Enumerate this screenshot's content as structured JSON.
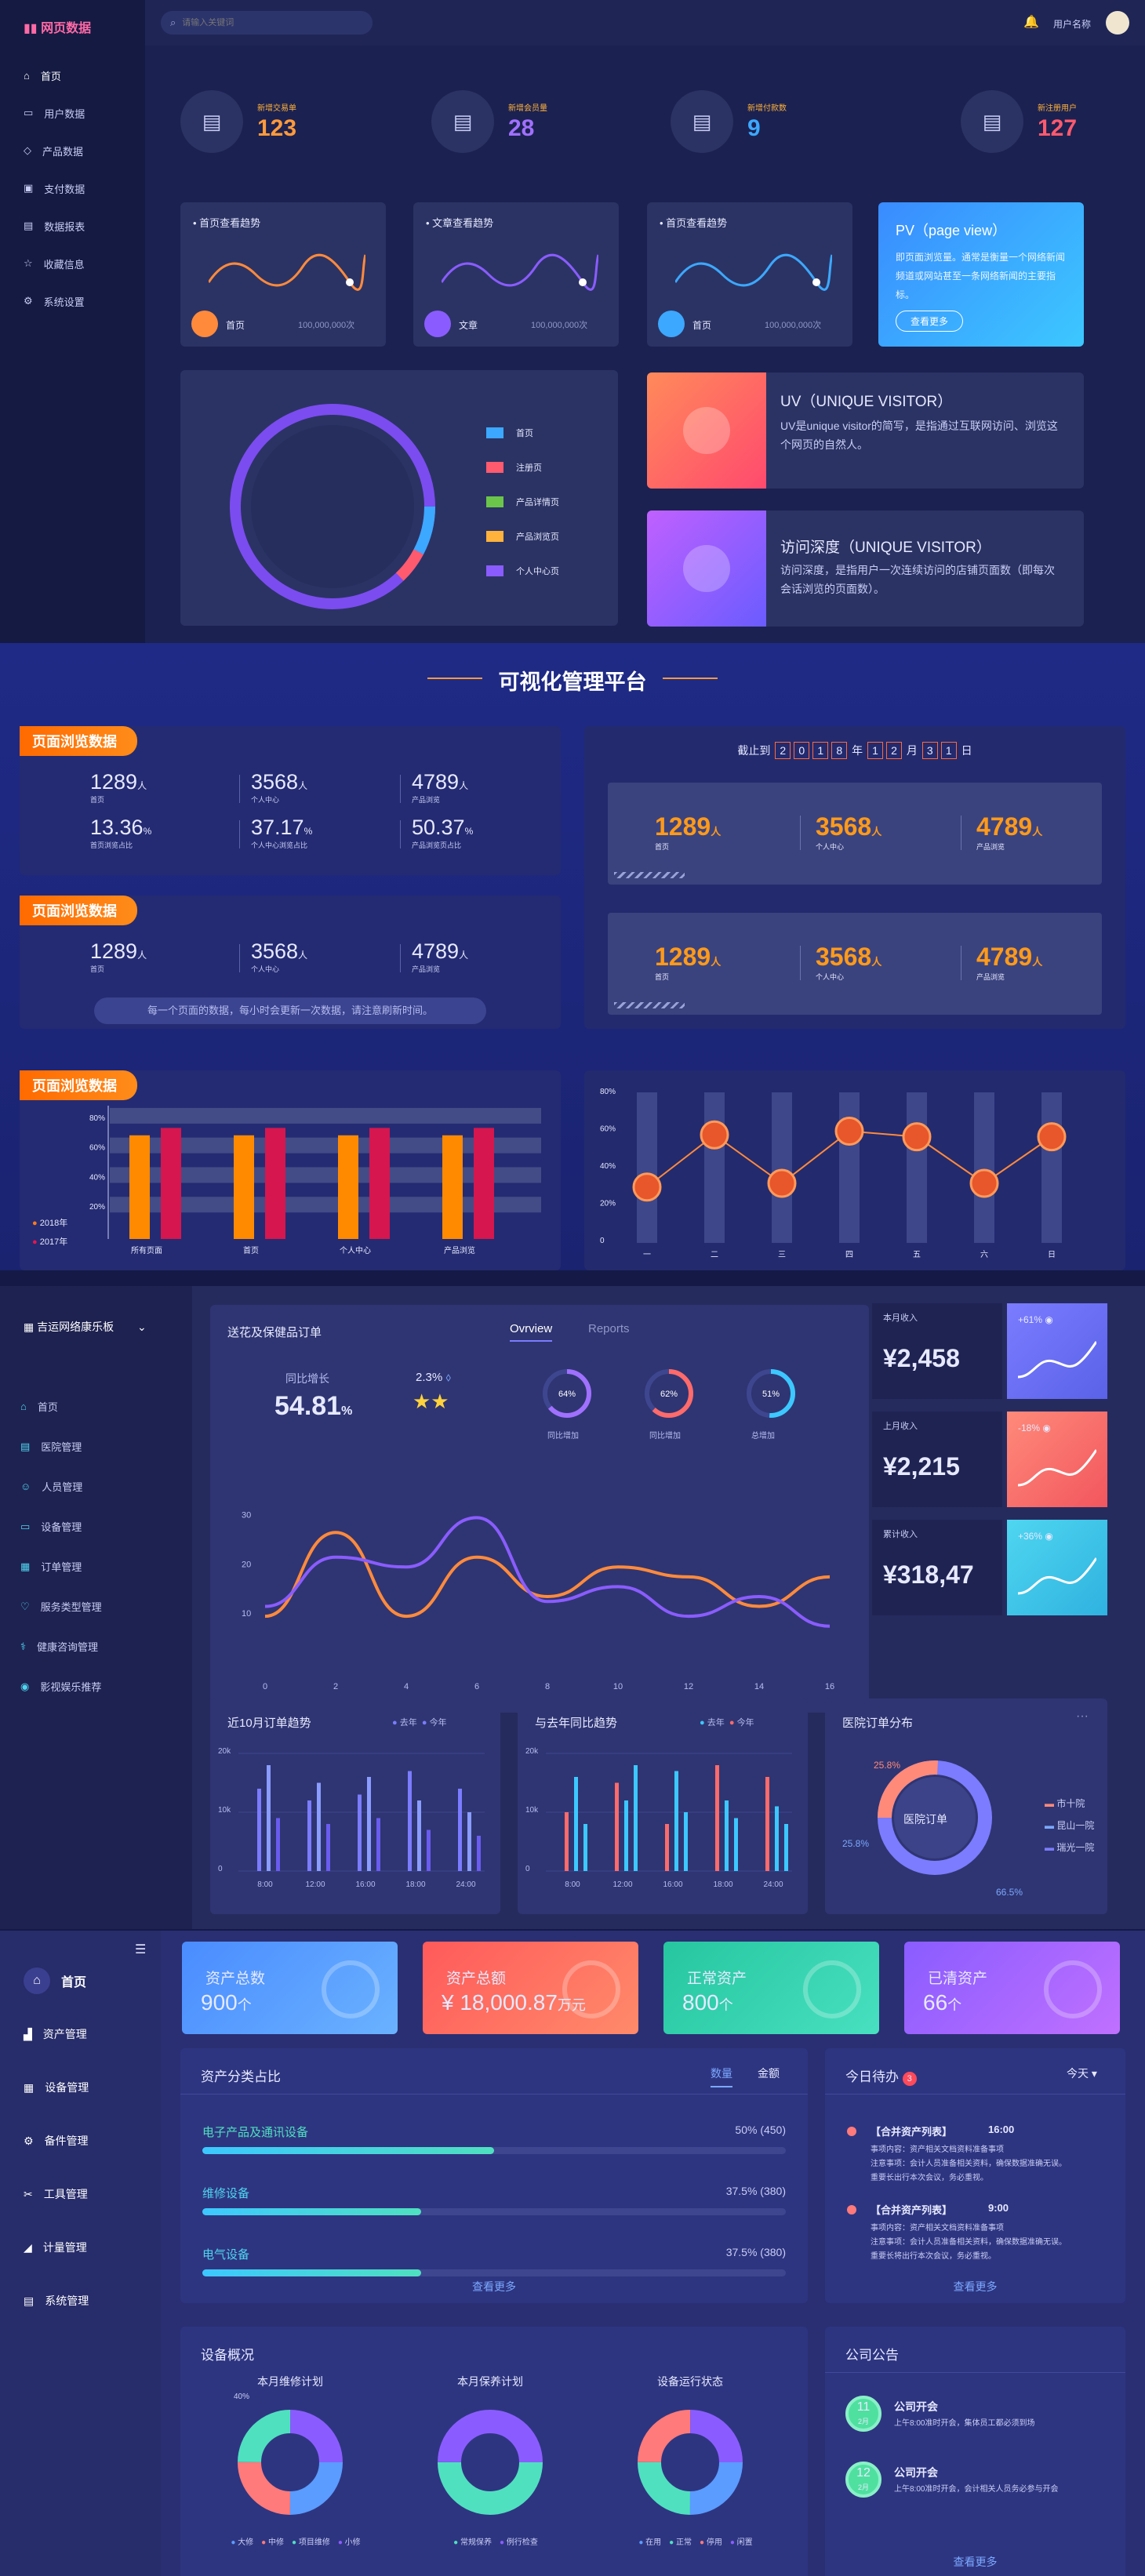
{
  "s1": {
    "logo": "网页数据",
    "search_placeholder": "请输入关键词",
    "user": "用户名称",
    "nav": [
      "首页",
      "用户数据",
      "产品数据",
      "支付数据",
      "数据报表",
      "收藏信息",
      "系统设置"
    ],
    "stats": [
      {
        "label": "新增交易单",
        "value": "123",
        "color": "#ff9a3c"
      },
      {
        "label": "新增会员量",
        "value": "28",
        "color": "#a070ff"
      },
      {
        "label": "新增付款数",
        "value": "9",
        "color": "#3ca8ff"
      },
      {
        "label": "新注册用户",
        "value": "127",
        "color": "#ff5a6e"
      }
    ],
    "trends": [
      {
        "title": "首页查看趋势",
        "name": "首页",
        "count": "100,000,000次",
        "color": "#ff8a3c"
      },
      {
        "title": "文章查看趋势",
        "name": "文章",
        "count": "100,000,000次",
        "color": "#8a5cff"
      },
      {
        "title": "首页查看趋势",
        "name": "首页",
        "count": "100,000,000次",
        "color": "#3ca8ff"
      }
    ],
    "pv": {
      "title": "PV（page view）",
      "desc": "即页面浏览量。通常是衡量一个网络新闻频道或网站甚至一条网络新闻的主要指标。",
      "btn": "查看更多"
    },
    "uv": {
      "title": "UV（UNIQUE VISITOR）",
      "desc": "UV是unique visitor的简写，是指通过互联网访问、浏览这个网页的自然人。"
    },
    "depth": {
      "title": "访问深度（UNIQUE VISITOR）",
      "desc": "访问深度，是指用户一次连续访问的店铺页面数（即每次会话浏览的页面数）。"
    },
    "legend": [
      {
        "name": "首页",
        "color": "#3ca8ff"
      },
      {
        "name": "注册页",
        "color": "#ff5a6e"
      },
      {
        "name": "产品详情页",
        "color": "#6bc54a"
      },
      {
        "name": "产品浏览页",
        "color": "#ffb23c"
      },
      {
        "name": "个人中心页",
        "color": "#8a5cff"
      }
    ]
  },
  "s2": {
    "title": "可视化管理平台",
    "tag": "页面浏览数据",
    "block1": [
      {
        "v": "1289",
        "u": "人",
        "l": "首页"
      },
      {
        "v": "3568",
        "u": "人",
        "l": "个人中心"
      },
      {
        "v": "4789",
        "u": "人",
        "l": "产品浏览"
      },
      {
        "v": "13.36",
        "u": "%",
        "l": "首页浏览占比"
      },
      {
        "v": "37.17",
        "u": "%",
        "l": "个人中心浏览占比"
      },
      {
        "v": "50.37",
        "u": "%",
        "l": "产品浏览页占比"
      }
    ],
    "block2": [
      {
        "v": "1289",
        "u": "人",
        "l": "首页"
      },
      {
        "v": "3568",
        "u": "人",
        "l": "个人中心"
      },
      {
        "v": "4789",
        "u": "人",
        "l": "产品浏览"
      }
    ],
    "note": "每一个页面的数据，每小时会更新一次数据，请注意刷新时间。",
    "date_prefix": "截止到",
    "date_digits": [
      "2",
      "0",
      "1",
      "8"
    ],
    "date_y": "年",
    "date_m": [
      "1",
      "2"
    ],
    "date_ml": "月",
    "date_d": [
      "3",
      "1"
    ],
    "date_dl": "日",
    "right": [
      {
        "v": "1289",
        "u": "人",
        "l": "首页"
      },
      {
        "v": "3568",
        "u": "人",
        "l": "个人中心"
      },
      {
        "v": "4789",
        "u": "人",
        "l": "产品浏览"
      }
    ],
    "bar_legend": [
      "2018年",
      "2017年"
    ]
  },
  "chart_bar": {
    "type": "bar",
    "categories": [
      "所有页面",
      "首页",
      "个人中心",
      "产品浏览"
    ],
    "series": [
      {
        "name": "2018年",
        "values": [
          70,
          70,
          70,
          70
        ]
      },
      {
        "name": "2017年",
        "values": [
          75,
          75,
          75,
          75
        ]
      }
    ],
    "ylim": [
      0,
      90
    ],
    "yticks": [
      "20%",
      "40%",
      "60%",
      "80%"
    ]
  },
  "chart_line": {
    "type": "line",
    "categories": [
      "一",
      "二",
      "三",
      "四",
      "五",
      "六",
      "日"
    ],
    "values": [
      30,
      58,
      32,
      60,
      57,
      32,
      57
    ],
    "yticks": [
      "0",
      "20%",
      "40%",
      "60%",
      "80%"
    ],
    "ylim": [
      0,
      80
    ]
  },
  "s3": {
    "brand": "吉运网络康乐板",
    "nav": [
      "首页",
      "医院管理",
      "人员管理",
      "设备管理",
      "订单管理",
      "服务类型管理",
      "健康咨询管理",
      "影视娱乐推荐"
    ],
    "main_title": "送花及保健品订单",
    "tab1": "Ovrview",
    "tab2": "Reports",
    "growth_label": "同比增长",
    "growth": "54.81",
    "growth_u": "%",
    "pct": "2.3%",
    "rings": [
      {
        "v": "64%",
        "l": "同比增加",
        "color": "#a070ff",
        "p": 0.64
      },
      {
        "v": "62%",
        "l": "同比增加",
        "color": "#ff6a6a",
        "p": 0.62
      },
      {
        "v": "51%",
        "l": "总增加",
        "color": "#3cc8ff",
        "p": 0.51
      }
    ],
    "income": [
      {
        "label": "本月收入",
        "value": "¥2,458",
        "chg": "+61%",
        "c1": "#7b7cff",
        "c2": "#5a62e8"
      },
      {
        "label": "上月收入",
        "value": "¥2,215",
        "chg": "-18%",
        "c1": "#ff8a7a",
        "c2": "#f2565e"
      },
      {
        "label": "累计收入",
        "value": "¥318,47",
        "chg": "+36%",
        "c1": "#4fd6f0",
        "c2": "#2fb2e0"
      }
    ],
    "b1": {
      "title": "近10月订单趋势",
      "l1": "去年",
      "l2": "今年"
    },
    "b2": {
      "title": "与去年同比趋势",
      "l1": "去年",
      "l2": "今年"
    },
    "b3": {
      "title": "医院订单分布",
      "center": "医院订单",
      "p1": "25.8%",
      "p2": "25.8%",
      "p3": "66.5%",
      "legend": [
        "市十院",
        "昆山一院",
        "瑞光一院"
      ]
    }
  },
  "chart_wave": {
    "type": "line",
    "x": [
      0,
      2,
      4,
      6,
      8,
      10,
      12,
      14,
      16
    ],
    "yticks": [
      "10",
      "20",
      "30"
    ],
    "series": [
      {
        "name": "",
        "values": [
          10,
          27,
          10,
          22,
          14,
          20,
          18,
          12,
          18
        ]
      },
      {
        "name": "",
        "values": [
          12,
          22,
          20,
          30,
          13,
          16,
          10,
          14,
          8
        ]
      }
    ]
  },
  "chart_bars_small1": {
    "type": "bar",
    "categories": [
      "8:00",
      "12:00",
      "16:00",
      "18:00",
      "24:00"
    ],
    "yticks": [
      "0",
      "10k",
      "20k"
    ],
    "values": [
      [
        14,
        18,
        9
      ],
      [
        12,
        15,
        8
      ],
      [
        13,
        16,
        9
      ],
      [
        17,
        12,
        7
      ],
      [
        14,
        10,
        6
      ]
    ]
  },
  "chart_bars_small2": {
    "type": "bar",
    "categories": [
      "8:00",
      "12:00",
      "16:00",
      "18:00",
      "24:00"
    ],
    "yticks": [
      "0",
      "10k",
      "20k"
    ],
    "values": [
      [
        10,
        16,
        8
      ],
      [
        15,
        12,
        18
      ],
      [
        8,
        17,
        10
      ],
      [
        18,
        12,
        9
      ],
      [
        16,
        11,
        8
      ]
    ]
  },
  "s4": {
    "nav": [
      "首页",
      "资产管理",
      "设备管理",
      "备件管理",
      "工具管理",
      "计量管理",
      "系统管理"
    ],
    "cards": [
      {
        "title": "资产总数",
        "value": "900",
        "unit": "个",
        "c1": "#4a8cff",
        "c2": "#6ab2ff"
      },
      {
        "title": "资产总额",
        "value": "¥ 18,000.87",
        "unit": "万元",
        "c1": "#ff5a5a",
        "c2": "#ff8a6a"
      },
      {
        "title": "正常资产",
        "value": "800",
        "unit": "个",
        "c1": "#26c6a0",
        "c2": "#48e0c0"
      },
      {
        "title": "已清资产",
        "value": "66",
        "unit": "个",
        "c1": "#8a5cff",
        "c2": "#c070ff"
      }
    ],
    "cat": {
      "title": "资产分类占比",
      "tab1": "数量",
      "tab2": "金额",
      "more": "查看更多",
      "items": [
        {
          "name": "电子产品及通讯设备",
          "v": "50% (450)",
          "p": 0.5
        },
        {
          "name": "维修设备",
          "v": "37.5% (380)",
          "p": 0.375
        },
        {
          "name": "电气设备",
          "v": "37.5% (380)",
          "p": 0.375
        }
      ]
    },
    "todo": {
      "title": "今日待办",
      "badge": "3",
      "sel": "今天",
      "more": "查看更多",
      "items": [
        {
          "t": "【合并资产列表】",
          "time": "16:00",
          "lines": [
            "事项内容：资产相关文档资料准备事项",
            "注意事项：会计人员准备相关资料，确保数据准确无误。",
            "重要长出行本次会议，务必重视。"
          ]
        },
        {
          "t": "【合并资产列表】",
          "time": "9:00",
          "lines": [
            "事项内容：资产相关文档资料准备事项",
            "注意事项：会计人员准备相关资料，确保数据准确无误。",
            "重要长将出行本次会议，务必重视。"
          ]
        }
      ]
    },
    "equip": {
      "title": "设备概况",
      "charts": [
        {
          "title": "本月维修计划",
          "pct": "40%",
          "legend": [
            "大修",
            "中修",
            "项目维修",
            "小修"
          ]
        },
        {
          "title": "本月保养计划",
          "legend": [
            "常规保养",
            "例行检查"
          ]
        },
        {
          "title": "设备运行状态",
          "legend": [
            "在用",
            "正常",
            "停用",
            "闲置"
          ]
        }
      ]
    },
    "notice": {
      "title": "公司公告",
      "more": "查看更多",
      "items": [
        {
          "day": "11",
          "mon": "2月",
          "t": "公司开会",
          "d": "上午8:00准时开会，集体员工都必须到场"
        },
        {
          "day": "12",
          "mon": "2月",
          "t": "公司开会",
          "d": "上午8:00准时开会，会计相关人员务必参与开会"
        }
      ]
    }
  }
}
